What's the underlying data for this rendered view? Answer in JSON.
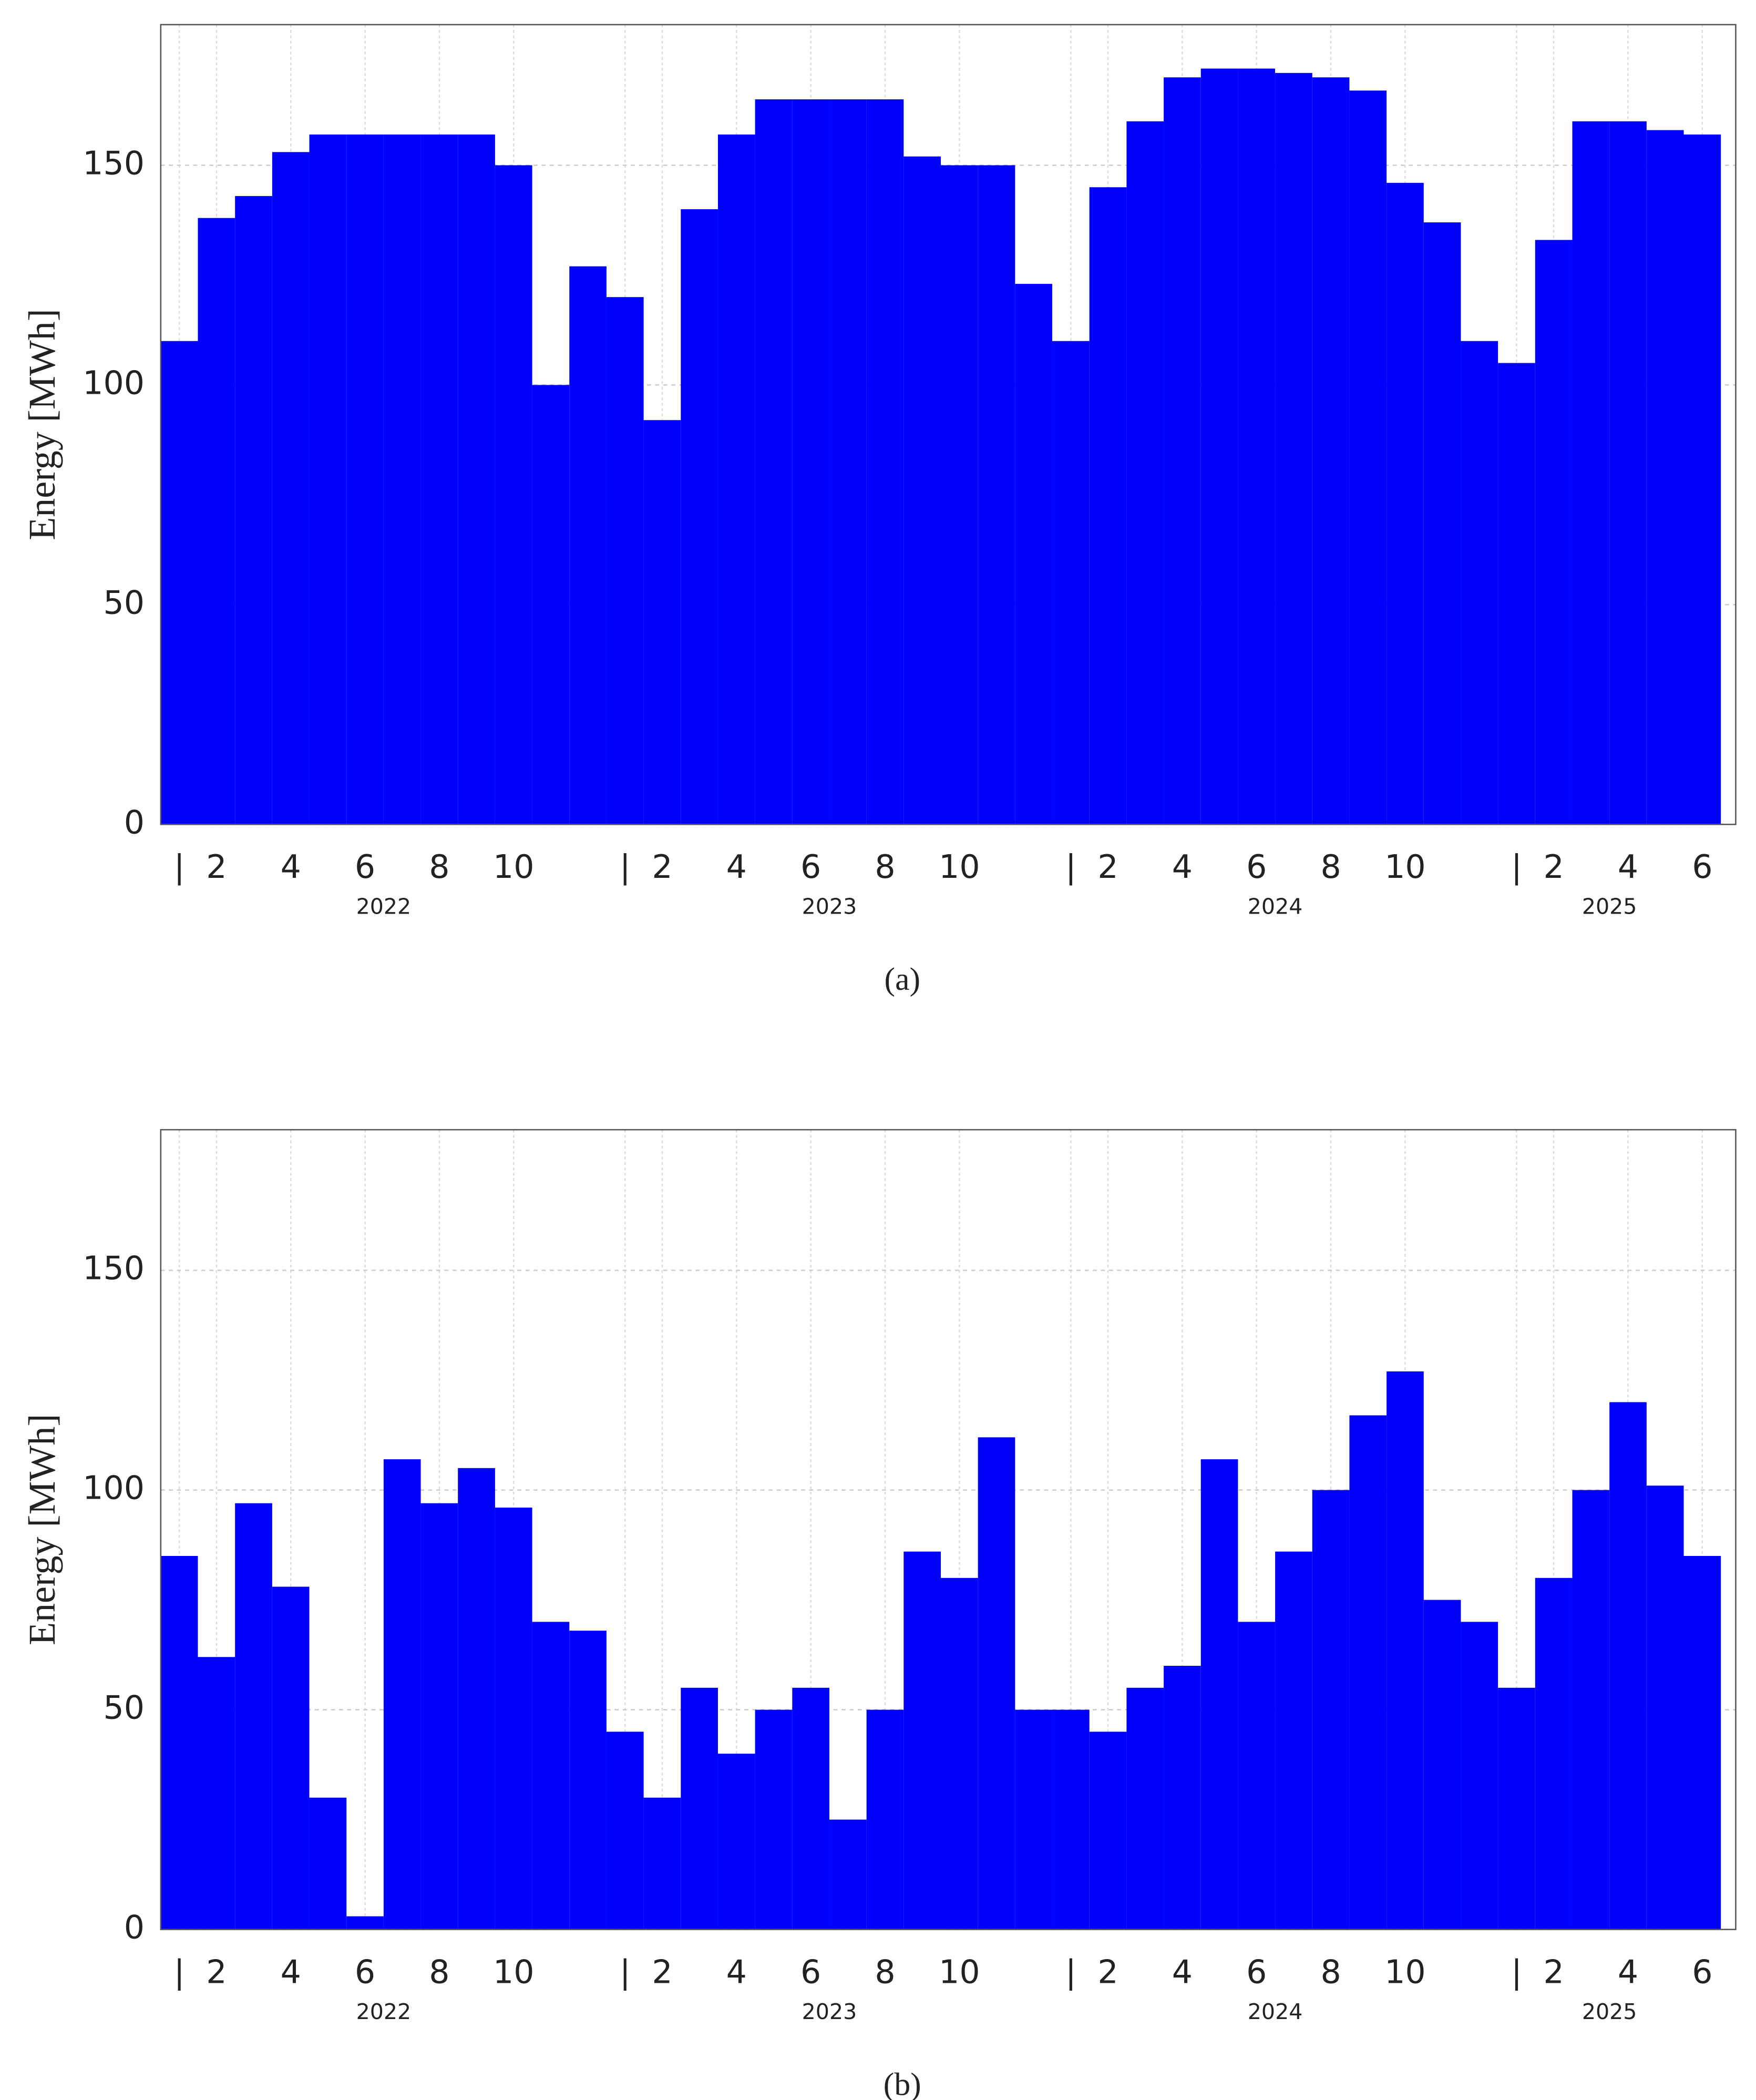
{
  "chart_data": [
    {
      "type": "bar",
      "caption": "(a)",
      "ylabel": "Energy [MWh]",
      "color": "#0000ff",
      "grid": true,
      "x": [
        "2022-01",
        "2022-02",
        "2022-03",
        "2022-04",
        "2022-05",
        "2022-06",
        "2022-07",
        "2022-08",
        "2022-09",
        "2022-10",
        "2022-11",
        "2022-12",
        "2023-01",
        "2023-02",
        "2023-03",
        "2023-04",
        "2023-05",
        "2023-06",
        "2023-07",
        "2023-08",
        "2023-09",
        "2023-10",
        "2023-11",
        "2023-12",
        "2024-01",
        "2024-02",
        "2024-03",
        "2024-04",
        "2024-05",
        "2024-06",
        "2024-07",
        "2024-08",
        "2024-09",
        "2024-10",
        "2024-11",
        "2024-12",
        "2025-01",
        "2025-02",
        "2025-03",
        "2025-04",
        "2025-05",
        "2025-06"
      ],
      "values": [
        110,
        138,
        143,
        153,
        157,
        157,
        157,
        157,
        157,
        150,
        100,
        127,
        120,
        92,
        140,
        157,
        165,
        165,
        165,
        165,
        152,
        150,
        150,
        123,
        110,
        145,
        160,
        170,
        172,
        172,
        171,
        170,
        167,
        146,
        137,
        110,
        105,
        133,
        160,
        160,
        158,
        157
      ],
      "ylim": [
        0,
        182
      ],
      "yticks": [
        0,
        50,
        100,
        150
      ],
      "xticks": [
        {
          "value": "2022-01",
          "label": "|"
        },
        {
          "value": "2022-02",
          "label": "2"
        },
        {
          "value": "2022-04",
          "label": "4"
        },
        {
          "value": "2022-06",
          "label": "6"
        },
        {
          "value": "2022-08",
          "label": "8"
        },
        {
          "value": "2022-10",
          "label": "10"
        },
        {
          "value": "2023-01",
          "label": "|"
        },
        {
          "value": "2023-02",
          "label": "2"
        },
        {
          "value": "2023-04",
          "label": "4"
        },
        {
          "value": "2023-06",
          "label": "6"
        },
        {
          "value": "2023-08",
          "label": "8"
        },
        {
          "value": "2023-10",
          "label": "10"
        },
        {
          "value": "2024-01",
          "label": "|"
        },
        {
          "value": "2024-02",
          "label": "2"
        },
        {
          "value": "2024-04",
          "label": "4"
        },
        {
          "value": "2024-06",
          "label": "6"
        },
        {
          "value": "2024-08",
          "label": "8"
        },
        {
          "value": "2024-10",
          "label": "10"
        },
        {
          "value": "2025-01",
          "label": "|"
        },
        {
          "value": "2025-02",
          "label": "2"
        },
        {
          "value": "2025-04",
          "label": "4"
        },
        {
          "value": "2025-06",
          "label": "6"
        }
      ],
      "years": [
        "2022",
        "2023",
        "2024",
        "2025"
      ]
    },
    {
      "type": "bar",
      "caption": "(b)",
      "ylabel": "Energy [MWh]",
      "color": "#0000ff",
      "grid": true,
      "x": [
        "2022-01",
        "2022-02",
        "2022-03",
        "2022-04",
        "2022-05",
        "2022-06",
        "2022-07",
        "2022-08",
        "2022-09",
        "2022-10",
        "2022-11",
        "2022-12",
        "2023-01",
        "2023-02",
        "2023-03",
        "2023-04",
        "2023-05",
        "2023-06",
        "2023-07",
        "2023-08",
        "2023-09",
        "2023-10",
        "2023-11",
        "2023-12",
        "2024-01",
        "2024-02",
        "2024-03",
        "2024-04",
        "2024-05",
        "2024-06",
        "2024-07",
        "2024-08",
        "2024-09",
        "2024-10",
        "2024-11",
        "2024-12",
        "2025-01",
        "2025-02",
        "2025-03",
        "2025-04",
        "2025-05",
        "2025-06"
      ],
      "values": [
        85,
        62,
        97,
        78,
        30,
        3,
        107,
        97,
        105,
        96,
        70,
        68,
        45,
        30,
        55,
        40,
        50,
        55,
        25,
        50,
        86,
        80,
        112,
        50,
        50,
        45,
        55,
        60,
        107,
        70,
        86,
        100,
        117,
        127,
        75,
        70,
        55,
        80,
        100,
        120,
        101,
        85
      ],
      "ylim": [
        0,
        182
      ],
      "yticks": [
        0,
        50,
        100,
        150
      ],
      "xticks": [
        {
          "value": "2022-01",
          "label": "|"
        },
        {
          "value": "2022-02",
          "label": "2"
        },
        {
          "value": "2022-04",
          "label": "4"
        },
        {
          "value": "2022-06",
          "label": "6"
        },
        {
          "value": "2022-08",
          "label": "8"
        },
        {
          "value": "2022-10",
          "label": "10"
        },
        {
          "value": "2023-01",
          "label": "|"
        },
        {
          "value": "2023-02",
          "label": "2"
        },
        {
          "value": "2023-04",
          "label": "4"
        },
        {
          "value": "2023-06",
          "label": "6"
        },
        {
          "value": "2023-08",
          "label": "8"
        },
        {
          "value": "2023-10",
          "label": "10"
        },
        {
          "value": "2024-01",
          "label": "|"
        },
        {
          "value": "2024-02",
          "label": "2"
        },
        {
          "value": "2024-04",
          "label": "4"
        },
        {
          "value": "2024-06",
          "label": "6"
        },
        {
          "value": "2024-08",
          "label": "8"
        },
        {
          "value": "2024-10",
          "label": "10"
        },
        {
          "value": "2025-01",
          "label": "|"
        },
        {
          "value": "2025-02",
          "label": "2"
        },
        {
          "value": "2025-04",
          "label": "4"
        },
        {
          "value": "2025-06",
          "label": "6"
        }
      ],
      "years": [
        "2022",
        "2023",
        "2024",
        "2025"
      ]
    }
  ]
}
